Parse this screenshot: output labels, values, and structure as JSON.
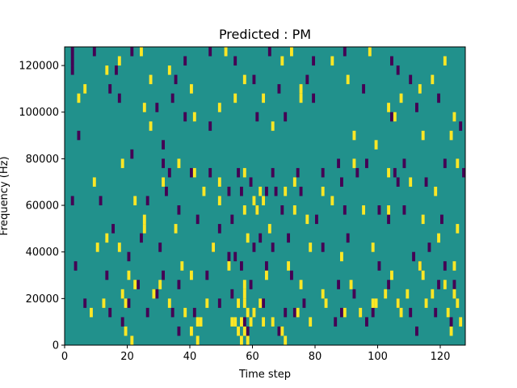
{
  "chart_data": {
    "type": "heatmap",
    "title": "Predicted : PM",
    "xlabel": "Time step",
    "ylabel": "Frequency (Hz)",
    "xlim": [
      0,
      128
    ],
    "ylim": [
      0,
      128000
    ],
    "x_ticks": [
      0,
      20,
      40,
      60,
      80,
      100,
      120
    ],
    "x_tick_labels": [
      "0",
      "20",
      "40",
      "60",
      "80",
      "100",
      "120"
    ],
    "y_ticks": [
      0,
      20000,
      40000,
      60000,
      80000,
      100000,
      120000
    ],
    "y_tick_labels": [
      "0",
      "20000",
      "40000",
      "60000",
      "80000",
      "100000",
      "120000"
    ],
    "grid": false,
    "colors": {
      "background": "#21918c",
      "low": "#440154",
      "high": "#fde725"
    },
    "bin_width_x": 1,
    "bin_height_y": 4000,
    "low_cells": [
      [
        2,
        124000
      ],
      [
        2,
        120000
      ],
      [
        2,
        116000
      ],
      [
        9,
        124000
      ],
      [
        16,
        116000
      ],
      [
        21,
        124000
      ],
      [
        35,
        112000
      ],
      [
        38,
        120000
      ],
      [
        46,
        124000
      ],
      [
        54,
        120000
      ],
      [
        60,
        112000
      ],
      [
        65,
        124000
      ],
      [
        68,
        108000
      ],
      [
        77,
        112000
      ],
      [
        79,
        120000
      ],
      [
        89,
        124000
      ],
      [
        104,
        120000
      ],
      [
        106,
        116000
      ],
      [
        110,
        112000
      ],
      [
        4,
        88000
      ],
      [
        14,
        108000
      ],
      [
        17,
        104000
      ],
      [
        29,
        100000
      ],
      [
        34,
        104000
      ],
      [
        38,
        96000
      ],
      [
        46,
        92000
      ],
      [
        61,
        96000
      ],
      [
        70,
        96000
      ],
      [
        79,
        104000
      ],
      [
        95,
        108000
      ],
      [
        104,
        96000
      ],
      [
        112,
        100000
      ],
      [
        119,
        104000
      ],
      [
        126,
        92000
      ],
      [
        21,
        80000
      ],
      [
        31,
        84000
      ],
      [
        31,
        76000
      ],
      [
        33,
        72000
      ],
      [
        40,
        72000
      ],
      [
        46,
        72000
      ],
      [
        55,
        72000
      ],
      [
        59,
        68000
      ],
      [
        66,
        72000
      ],
      [
        74,
        72000
      ],
      [
        82,
        72000
      ],
      [
        87,
        76000
      ],
      [
        93,
        72000
      ],
      [
        96,
        76000
      ],
      [
        105,
        72000
      ],
      [
        108,
        76000
      ],
      [
        115,
        68000
      ],
      [
        121,
        76000
      ],
      [
        127,
        72000
      ],
      [
        32,
        64000
      ],
      [
        52,
        64000
      ],
      [
        56,
        64000
      ],
      [
        67,
        64000
      ],
      [
        75,
        64000
      ],
      [
        88,
        68000
      ],
      [
        106,
        68000
      ],
      [
        2,
        60000
      ],
      [
        11,
        60000
      ],
      [
        26,
        60000
      ],
      [
        36,
        56000
      ],
      [
        42,
        52000
      ],
      [
        49,
        48000
      ],
      [
        53,
        52000
      ],
      [
        61,
        56000
      ],
      [
        64,
        64000
      ],
      [
        69,
        56000
      ],
      [
        80,
        52000
      ],
      [
        89,
        56000
      ],
      [
        100,
        56000
      ],
      [
        103,
        52000
      ],
      [
        108,
        56000
      ],
      [
        120,
        52000
      ],
      [
        15,
        48000
      ],
      [
        24,
        44000
      ],
      [
        30,
        40000
      ],
      [
        47,
        40000
      ],
      [
        52,
        36000
      ],
      [
        60,
        40000
      ],
      [
        62,
        44000
      ],
      [
        66,
        40000
      ],
      [
        71,
        44000
      ],
      [
        82,
        40000
      ],
      [
        90,
        44000
      ],
      [
        100,
        32000
      ],
      [
        111,
        36000
      ],
      [
        116,
        40000
      ],
      [
        121,
        32000
      ],
      [
        3,
        32000
      ],
      [
        13,
        28000
      ],
      [
        20,
        36000
      ],
      [
        23,
        24000
      ],
      [
        31,
        28000
      ],
      [
        36,
        24000
      ],
      [
        45,
        28000
      ],
      [
        54,
        36000
      ],
      [
        56,
        32000
      ],
      [
        59,
        24000
      ],
      [
        64,
        32000
      ],
      [
        72,
        28000
      ],
      [
        87,
        24000
      ],
      [
        92,
        20000
      ],
      [
        103,
        24000
      ],
      [
        113,
        32000
      ],
      [
        119,
        24000
      ],
      [
        124,
        24000
      ],
      [
        6,
        16000
      ],
      [
        14,
        12000
      ],
      [
        20,
        16000
      ],
      [
        29,
        20000
      ],
      [
        34,
        12000
      ],
      [
        41,
        12000
      ],
      [
        53,
        20000
      ],
      [
        57,
        8000
      ],
      [
        63,
        16000
      ],
      [
        70,
        12000
      ],
      [
        76,
        16000
      ],
      [
        88,
        12000
      ],
      [
        96,
        8000
      ],
      [
        106,
        16000
      ],
      [
        110,
        12000
      ],
      [
        123,
        8000
      ],
      [
        18,
        8000
      ],
      [
        26,
        12000
      ],
      [
        36,
        4000
      ],
      [
        49,
        16000
      ],
      [
        58,
        4000
      ],
      [
        68,
        4000
      ],
      [
        73,
        12000
      ],
      [
        86,
        8000
      ],
      [
        98,
        12000
      ],
      [
        112,
        4000
      ],
      [
        118,
        12000
      ]
    ],
    "high_cells": [
      [
        4,
        104000
      ],
      [
        6,
        108000
      ],
      [
        13,
        116000
      ],
      [
        17,
        120000
      ],
      [
        24,
        124000
      ],
      [
        27,
        112000
      ],
      [
        33,
        116000
      ],
      [
        40,
        108000
      ],
      [
        51,
        124000
      ],
      [
        57,
        112000
      ],
      [
        63,
        104000
      ],
      [
        69,
        120000
      ],
      [
        72,
        124000
      ],
      [
        75,
        104000
      ],
      [
        85,
        120000
      ],
      [
        90,
        112000
      ],
      [
        97,
        124000
      ],
      [
        103,
        100000
      ],
      [
        107,
        104000
      ],
      [
        113,
        108000
      ],
      [
        117,
        112000
      ],
      [
        121,
        120000
      ],
      [
        124,
        96000
      ],
      [
        25,
        100000
      ],
      [
        27,
        92000
      ],
      [
        41,
        96000
      ],
      [
        49,
        100000
      ],
      [
        54,
        104000
      ],
      [
        66,
        92000
      ],
      [
        75,
        108000
      ],
      [
        92,
        88000
      ],
      [
        99,
        84000
      ],
      [
        105,
        96000
      ],
      [
        114,
        88000
      ],
      [
        123,
        88000
      ],
      [
        9,
        68000
      ],
      [
        18,
        76000
      ],
      [
        31,
        68000
      ],
      [
        36,
        76000
      ],
      [
        41,
        72000
      ],
      [
        49,
        68000
      ],
      [
        57,
        72000
      ],
      [
        60,
        60000
      ],
      [
        62,
        64000
      ],
      [
        70,
        64000
      ],
      [
        73,
        68000
      ],
      [
        82,
        64000
      ],
      [
        92,
        76000
      ],
      [
        103,
        72000
      ],
      [
        110,
        68000
      ],
      [
        118,
        64000
      ],
      [
        125,
        76000
      ],
      [
        22,
        60000
      ],
      [
        25,
        52000
      ],
      [
        35,
        48000
      ],
      [
        44,
        64000
      ],
      [
        49,
        60000
      ],
      [
        57,
        56000
      ],
      [
        61,
        56000
      ],
      [
        63,
        60000
      ],
      [
        73,
        56000
      ],
      [
        77,
        52000
      ],
      [
        85,
        60000
      ],
      [
        95,
        56000
      ],
      [
        103,
        56000
      ],
      [
        114,
        52000
      ],
      [
        125,
        48000
      ],
      [
        10,
        40000
      ],
      [
        13,
        44000
      ],
      [
        17,
        40000
      ],
      [
        25,
        48000
      ],
      [
        37,
        32000
      ],
      [
        47,
        40000
      ],
      [
        58,
        44000
      ],
      [
        65,
        48000
      ],
      [
        71,
        32000
      ],
      [
        78,
        40000
      ],
      [
        88,
        36000
      ],
      [
        98,
        40000
      ],
      [
        104,
        28000
      ],
      [
        114,
        28000
      ],
      [
        119,
        44000
      ],
      [
        124,
        32000
      ],
      [
        20,
        28000
      ],
      [
        30,
        24000
      ],
      [
        40,
        28000
      ],
      [
        52,
        32000
      ],
      [
        57,
        24000
      ],
      [
        64,
        28000
      ],
      [
        75,
        24000
      ],
      [
        82,
        20000
      ],
      [
        91,
        24000
      ],
      [
        102,
        20000
      ],
      [
        113,
        32000
      ],
      [
        121,
        24000
      ],
      [
        12,
        16000
      ],
      [
        18,
        20000
      ],
      [
        22,
        24000
      ],
      [
        33,
        16000
      ],
      [
        43,
        8000
      ],
      [
        55,
        4000
      ],
      [
        58,
        12000
      ],
      [
        62,
        16000
      ],
      [
        69,
        4000
      ],
      [
        78,
        8000
      ],
      [
        89,
        12000
      ],
      [
        99,
        16000
      ],
      [
        107,
        12000
      ],
      [
        115,
        16000
      ],
      [
        122,
        12000
      ],
      [
        126,
        8000
      ],
      [
        8,
        12000
      ],
      [
        19,
        16000
      ],
      [
        28,
        20000
      ],
      [
        38,
        12000
      ],
      [
        45,
        16000
      ],
      [
        54,
        8000
      ],
      [
        57,
        16000
      ],
      [
        66,
        8000
      ],
      [
        74,
        12000
      ],
      [
        83,
        16000
      ],
      [
        94,
        12000
      ],
      [
        106,
        16000
      ],
      [
        117,
        20000
      ],
      [
        123,
        4000
      ],
      [
        19,
        4000
      ],
      [
        21,
        0
      ],
      [
        40,
        4000
      ],
      [
        42,
        0
      ],
      [
        56,
        0
      ],
      [
        58,
        0
      ],
      [
        42,
        8000
      ],
      [
        55,
        16000
      ],
      [
        57,
        20000
      ],
      [
        57,
        4000
      ],
      [
        56,
        8000
      ],
      [
        59,
        8000
      ],
      [
        60,
        12000
      ],
      [
        53,
        8000
      ],
      [
        63,
        8000
      ],
      [
        70,
        0
      ],
      [
        98,
        16000
      ],
      [
        109,
        20000
      ],
      [
        125,
        16000
      ],
      [
        124,
        20000
      ]
    ]
  }
}
